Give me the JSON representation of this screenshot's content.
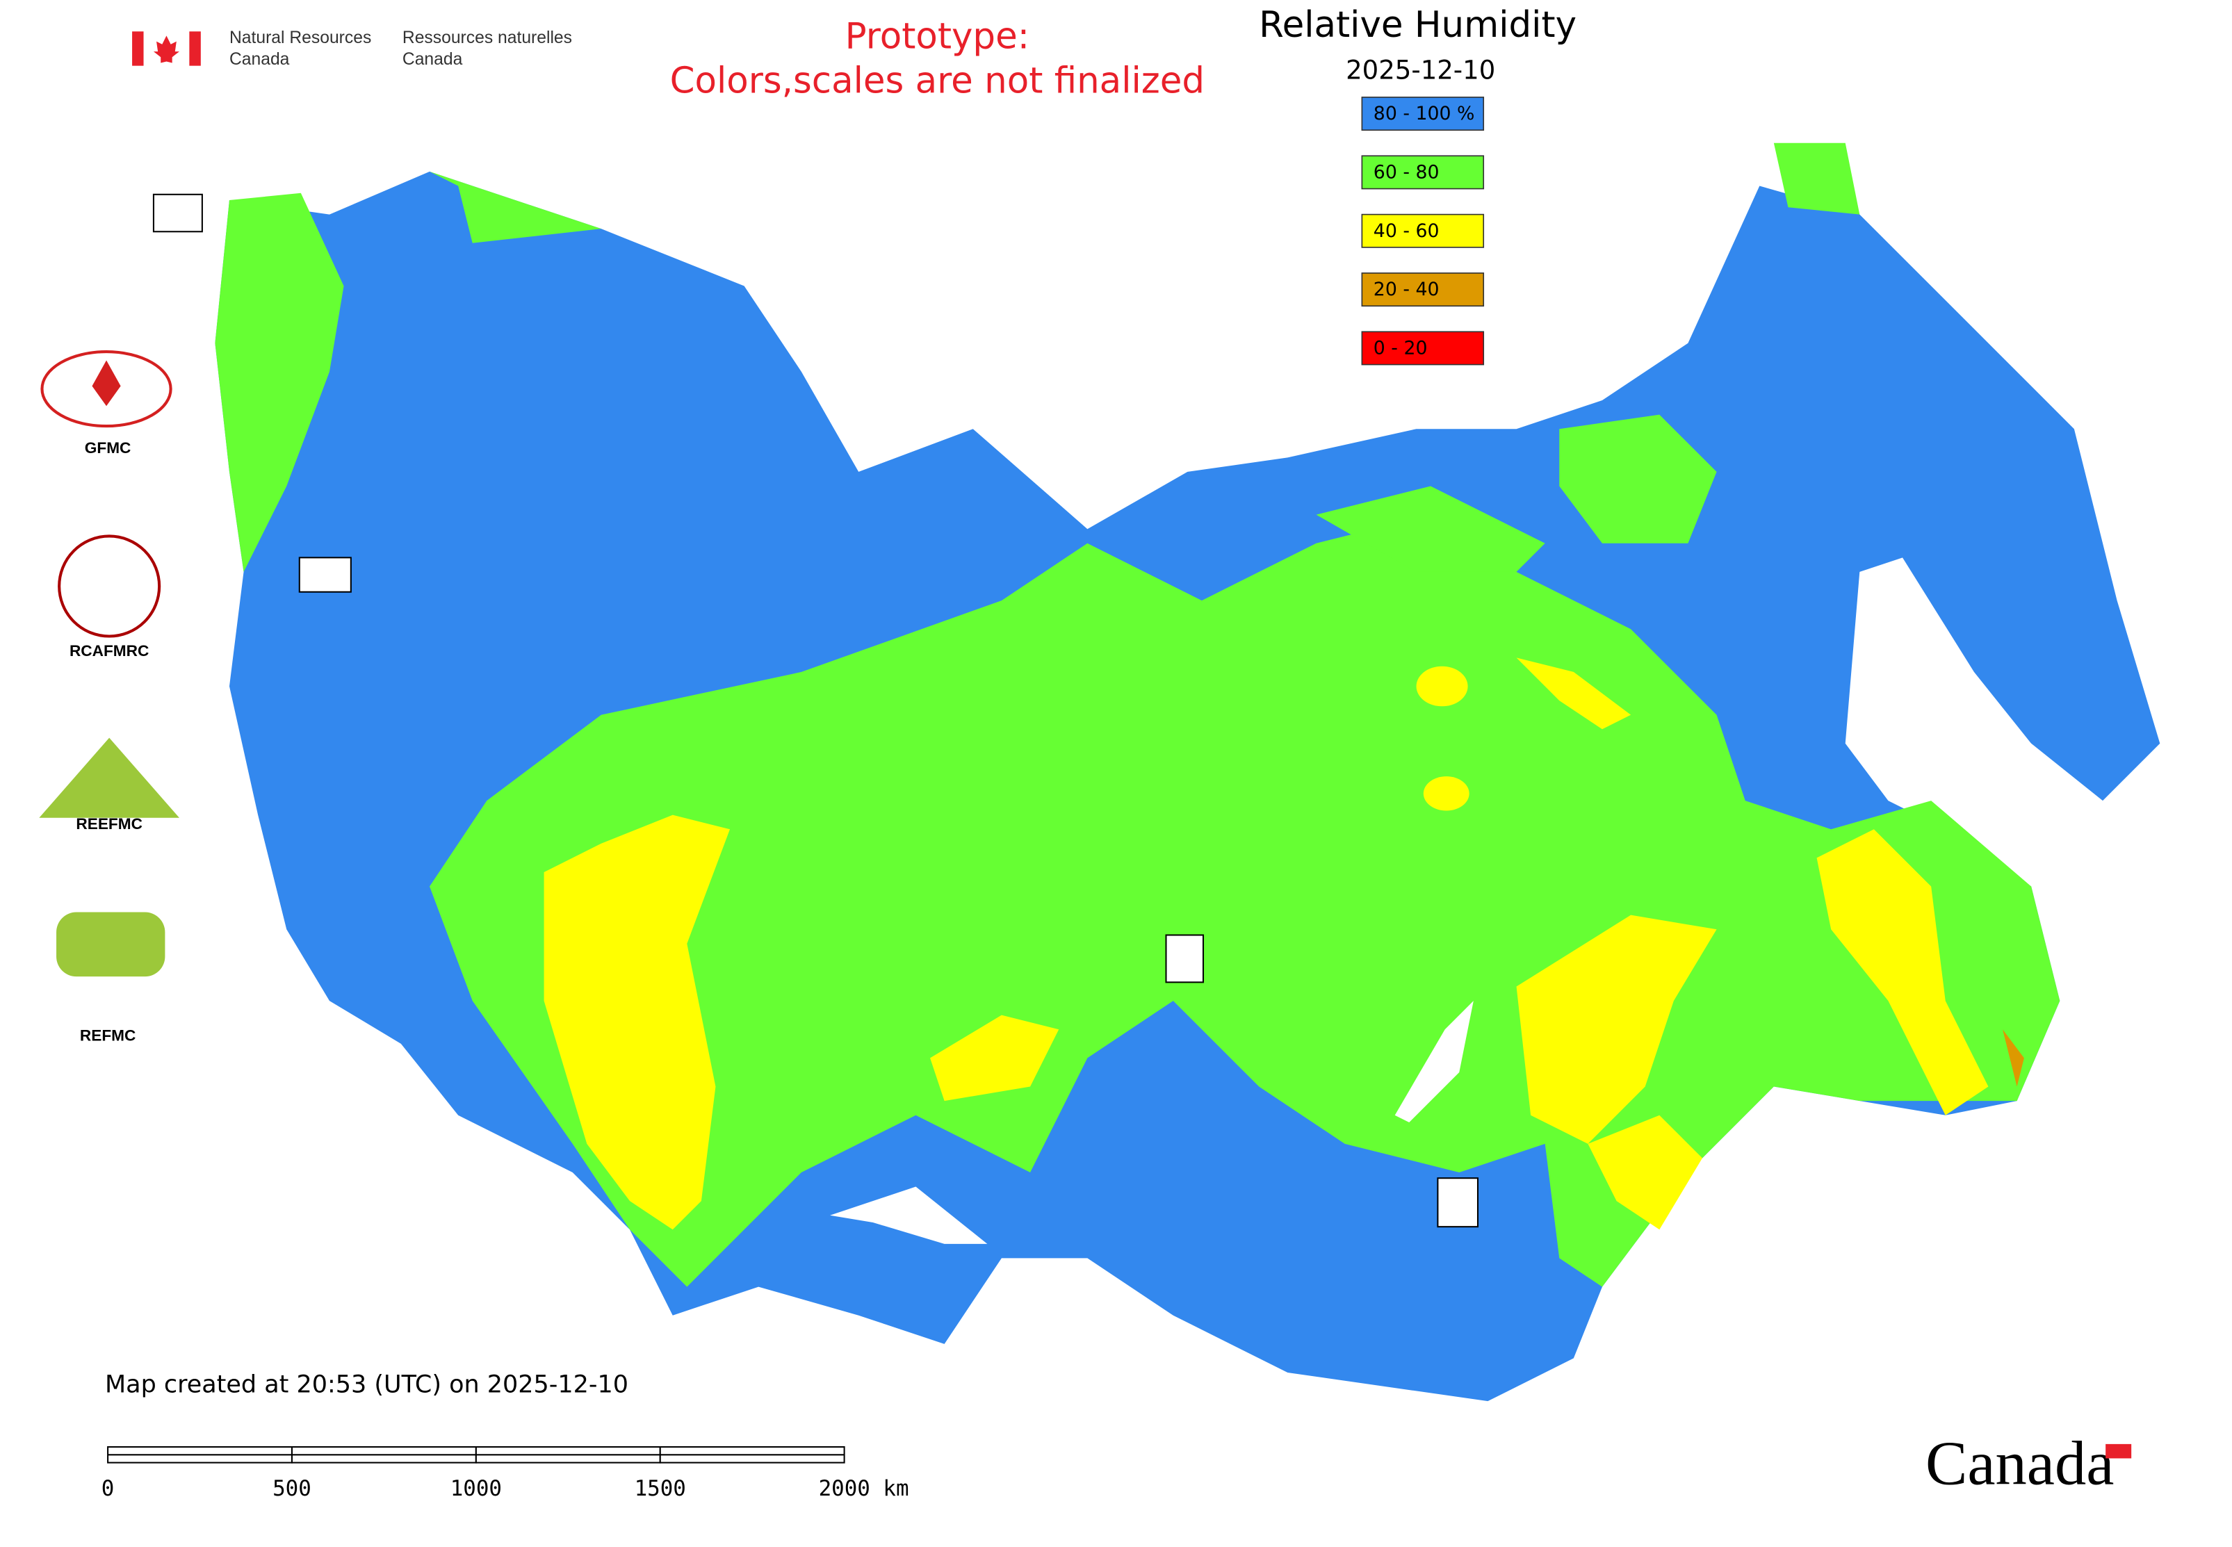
{
  "header": {
    "agency_en": [
      "Natural Resources",
      "Canada"
    ],
    "agency_fr": [
      "Ressources naturelles",
      "Canada"
    ],
    "notice": [
      "Prototype:",
      "Colors,scales are not finalized"
    ]
  },
  "map": {
    "title": "Relative Humidity",
    "date": "2025-12-10",
    "legend": [
      {
        "label": "80 - 100 %",
        "color": "#3388ee"
      },
      {
        "label": "60 - 80",
        "color": "#66ff33"
      },
      {
        "label": "40 - 60",
        "color": "#ffff00"
      },
      {
        "label": "20 - 40",
        "color": "#dd9900"
      },
      {
        "label": "0 - 20",
        "color": "#ff0000"
      }
    ],
    "created": "Map created at 20:53 (UTC) on 2025-12-10"
  },
  "logos": [
    "GFMC",
    "RCAFMRC",
    "REEFMC",
    "REFMC"
  ],
  "scale_bar": [
    "0",
    "500",
    "1000",
    "1500",
    "2000 km"
  ],
  "wordmark": "Canada"
}
